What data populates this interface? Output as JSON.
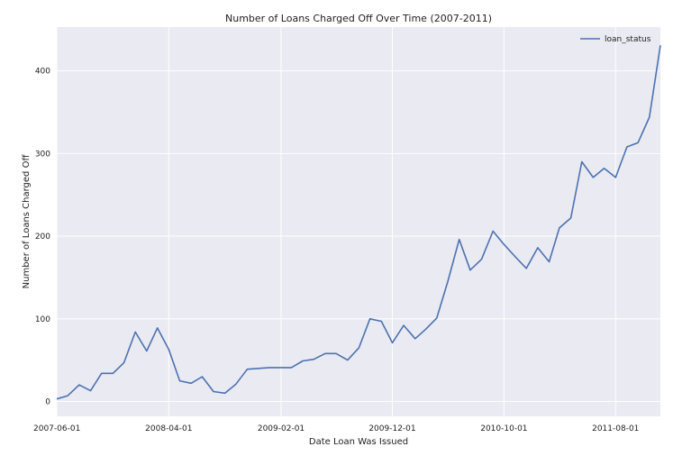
{
  "chart_data": {
    "type": "line",
    "title": "Number of Loans Charged Off Over Time (2007-2011)",
    "xlabel": "Date Loan Was Issued",
    "ylabel": "Number of Loans Charged Off",
    "x_start": "2007-06-01",
    "x_end": "2011-12-01",
    "x_ticks": [
      "2007-06-01",
      "2008-04-01",
      "2009-02-01",
      "2009-12-01",
      "2010-10-01",
      "2011-08-01"
    ],
    "y_ticks": [
      0,
      100,
      200,
      300,
      400
    ],
    "ylim": [
      -18,
      453
    ],
    "grid": true,
    "legend": {
      "placement": "top-right"
    },
    "series": [
      {
        "name": "loan_status",
        "color": "#4c72b0",
        "x": [
          "2007-06-01",
          "2007-07-01",
          "2007-08-01",
          "2007-09-01",
          "2007-10-01",
          "2007-11-01",
          "2007-12-01",
          "2008-01-01",
          "2008-02-01",
          "2008-03-01",
          "2008-04-01",
          "2008-05-01",
          "2008-06-01",
          "2008-07-01",
          "2008-08-01",
          "2008-09-01",
          "2008-10-01",
          "2008-11-01",
          "2008-12-01",
          "2009-01-01",
          "2009-02-01",
          "2009-03-01",
          "2009-04-01",
          "2009-05-01",
          "2009-06-01",
          "2009-07-01",
          "2009-08-01",
          "2009-09-01",
          "2009-10-01",
          "2009-11-01",
          "2009-12-01",
          "2010-01-01",
          "2010-02-01",
          "2010-03-01",
          "2010-04-01",
          "2010-05-01",
          "2010-06-01",
          "2010-07-01",
          "2010-08-01",
          "2010-09-01",
          "2010-10-01",
          "2010-11-01",
          "2010-12-01",
          "2011-01-01",
          "2011-02-01",
          "2011-03-01",
          "2011-04-01",
          "2011-05-01",
          "2011-06-01",
          "2011-07-01",
          "2011-08-01",
          "2011-09-01",
          "2011-10-01",
          "2011-11-01",
          "2011-12-01"
        ],
        "values": [
          3,
          7,
          20,
          13,
          34,
          34,
          47,
          84,
          61,
          89,
          63,
          25,
          22,
          30,
          12,
          10,
          21,
          39,
          40,
          41,
          41,
          41,
          49,
          51,
          58,
          58,
          50,
          65,
          100,
          97,
          71,
          92,
          76,
          87,
          101,
          145,
          196,
          159,
          172,
          206,
          190,
          175,
          161,
          186,
          169,
          210,
          222,
          290,
          271,
          282,
          271,
          308,
          313,
          344,
          431
        ]
      }
    ]
  }
}
